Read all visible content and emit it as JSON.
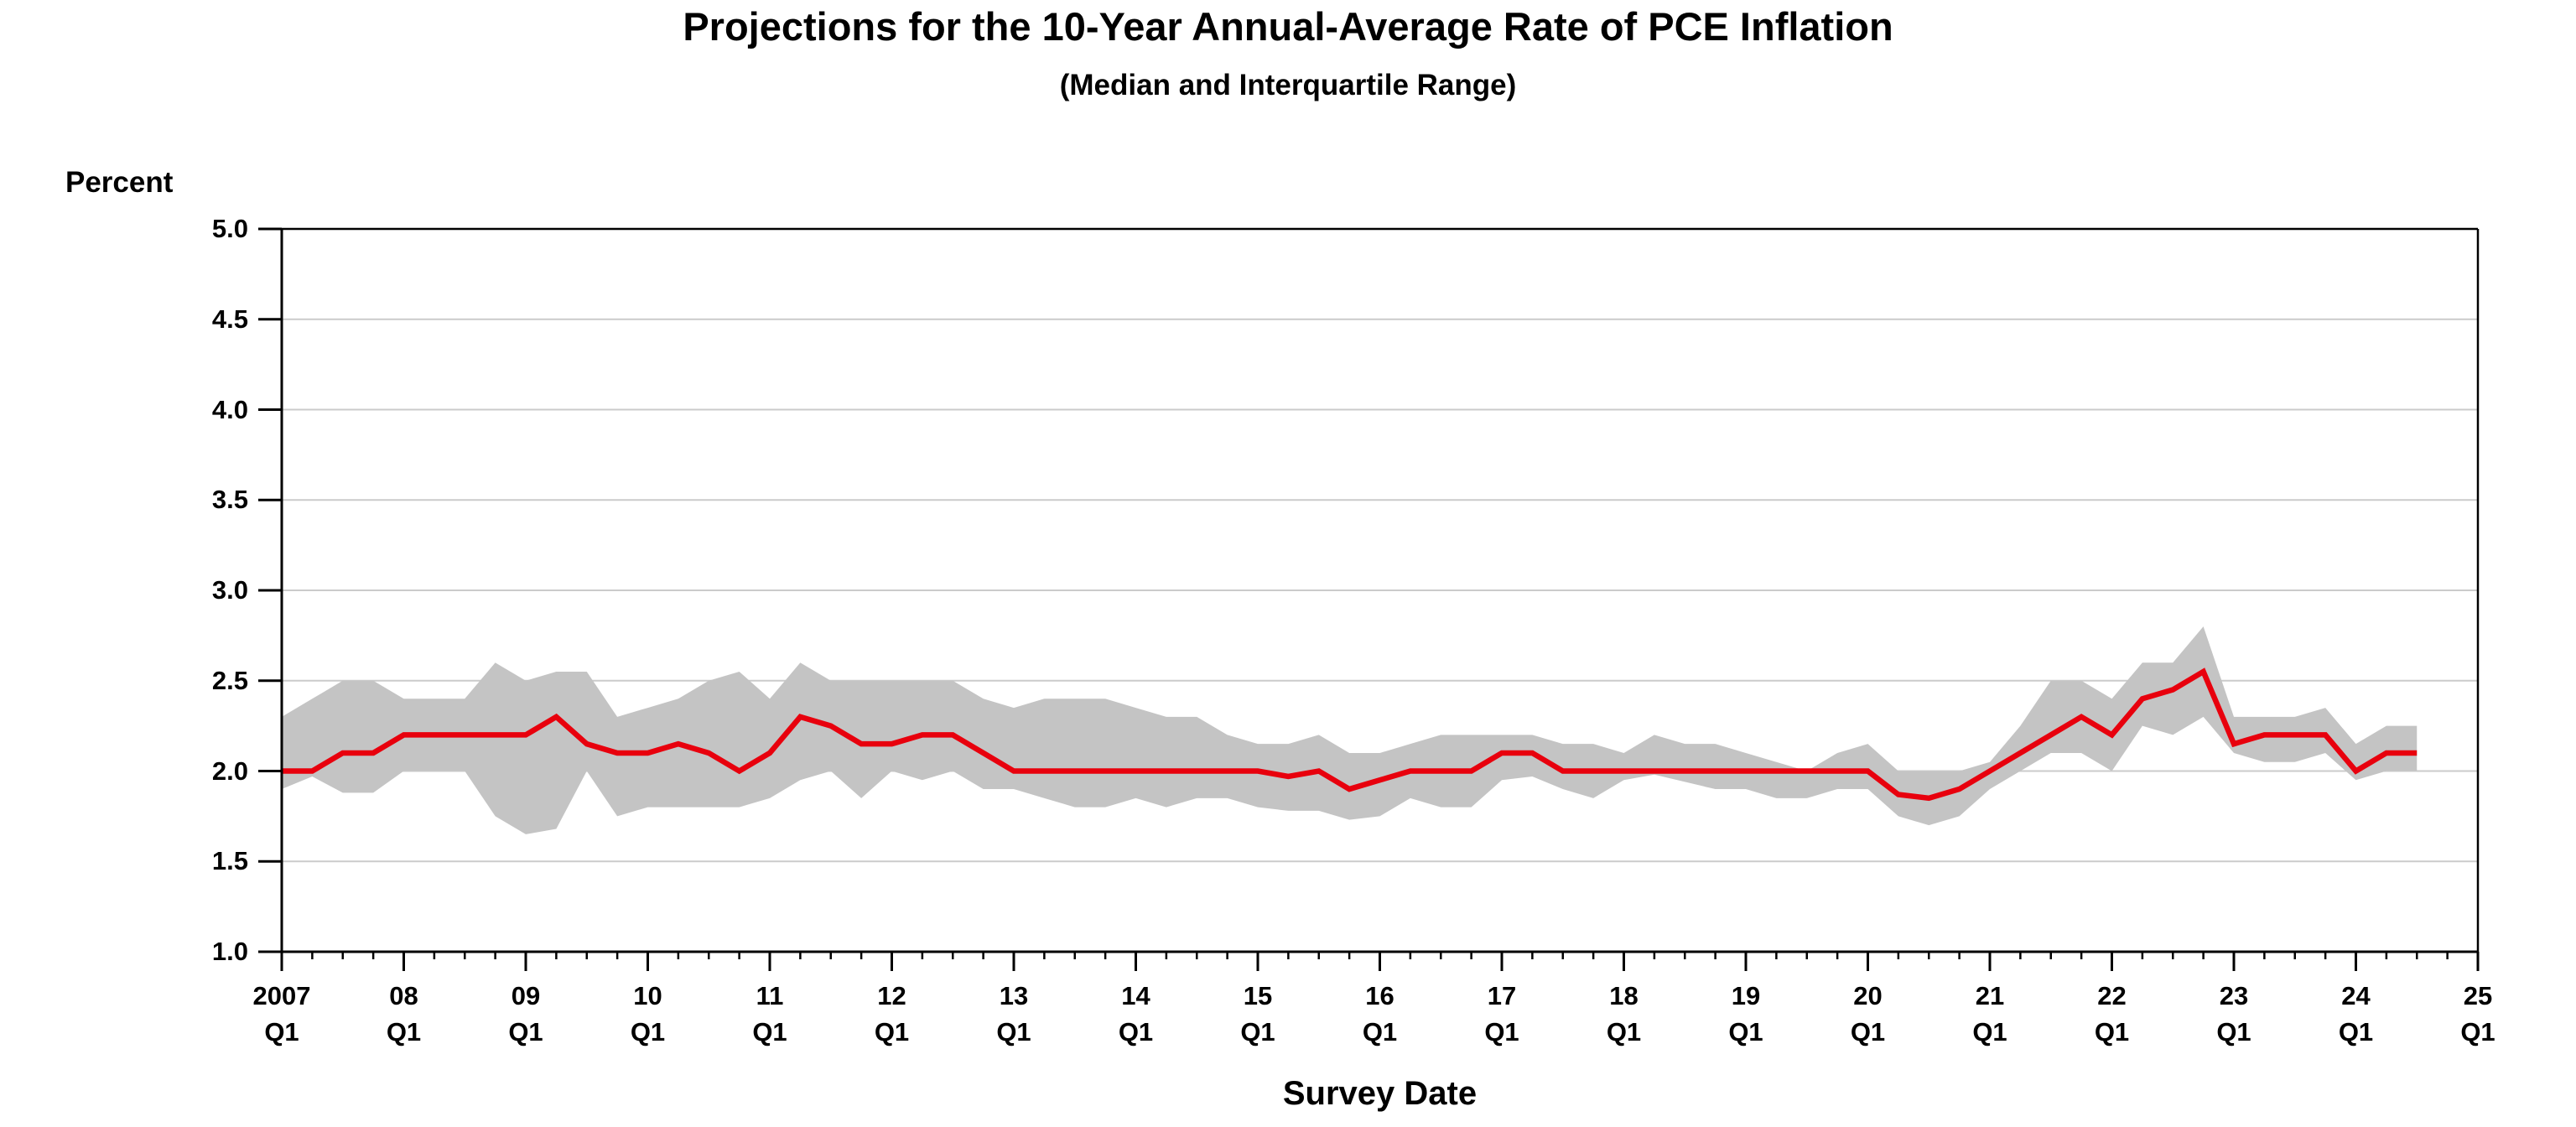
{
  "page": {
    "title": "Projections for the 10-Year Annual-Average Rate of PCE Inflation",
    "subtitle": "(Median and Interquartile Range)"
  },
  "colors": {
    "median_line": "#e8000d",
    "iqr_band": "#c4c4c4",
    "gridline": "#cbcbcb",
    "axis": "#000000",
    "text": "#000000",
    "background": "#ffffff"
  },
  "chart_data": {
    "type": "line",
    "title": "Projections for the 10-Year Annual-Average Rate of PCE Inflation",
    "subtitle": "(Median and Interquartile Range)",
    "xlabel": "Survey Date",
    "ylabel": "Percent",
    "ylim": [
      1.0,
      5.0
    ],
    "y_tick_step": 0.5,
    "y_ticks": [
      5.0,
      4.5,
      4.0,
      3.5,
      3.0,
      2.5,
      2.0,
      1.5,
      1.0
    ],
    "grid": true,
    "legend_position": "none",
    "x_major_ticks": [
      {
        "year": "2007",
        "quarter": "Q1"
      },
      {
        "year": "08",
        "quarter": "Q1"
      },
      {
        "year": "09",
        "quarter": "Q1"
      },
      {
        "year": "10",
        "quarter": "Q1"
      },
      {
        "year": "11",
        "quarter": "Q1"
      },
      {
        "year": "12",
        "quarter": "Q1"
      },
      {
        "year": "13",
        "quarter": "Q1"
      },
      {
        "year": "14",
        "quarter": "Q1"
      },
      {
        "year": "15",
        "quarter": "Q1"
      },
      {
        "year": "16",
        "quarter": "Q1"
      },
      {
        "year": "17",
        "quarter": "Q1"
      },
      {
        "year": "18",
        "quarter": "Q1"
      },
      {
        "year": "19",
        "quarter": "Q1"
      },
      {
        "year": "20",
        "quarter": "Q1"
      },
      {
        "year": "21",
        "quarter": "Q1"
      },
      {
        "year": "22",
        "quarter": "Q1"
      },
      {
        "year": "23",
        "quarter": "Q1"
      },
      {
        "year": "24",
        "quarter": "Q1"
      },
      {
        "year": "25",
        "quarter": "Q1"
      }
    ],
    "x": [
      "2007Q1",
      "2007Q2",
      "2007Q3",
      "2007Q4",
      "2008Q1",
      "2008Q2",
      "2008Q3",
      "2008Q4",
      "2009Q1",
      "2009Q2",
      "2009Q3",
      "2009Q4",
      "2010Q1",
      "2010Q2",
      "2010Q3",
      "2010Q4",
      "2011Q1",
      "2011Q2",
      "2011Q3",
      "2011Q4",
      "2012Q1",
      "2012Q2",
      "2012Q3",
      "2012Q4",
      "2013Q1",
      "2013Q2",
      "2013Q3",
      "2013Q4",
      "2014Q1",
      "2014Q2",
      "2014Q3",
      "2014Q4",
      "2015Q1",
      "2015Q2",
      "2015Q3",
      "2015Q4",
      "2016Q1",
      "2016Q2",
      "2016Q3",
      "2016Q4",
      "2017Q1",
      "2017Q2",
      "2017Q3",
      "2017Q4",
      "2018Q1",
      "2018Q2",
      "2018Q3",
      "2018Q4",
      "2019Q1",
      "2019Q2",
      "2019Q3",
      "2019Q4",
      "2020Q1",
      "2020Q2",
      "2020Q3",
      "2020Q4",
      "2021Q1",
      "2021Q2",
      "2021Q3",
      "2021Q4",
      "2022Q1",
      "2022Q2",
      "2022Q3",
      "2022Q4",
      "2023Q1",
      "2023Q2",
      "2023Q3",
      "2023Q4",
      "2024Q1",
      "2024Q2",
      "2024Q3"
    ],
    "series": [
      {
        "name": "Median",
        "role": "line",
        "color": "#e8000d",
        "values": [
          2.0,
          2.0,
          2.1,
          2.1,
          2.2,
          2.2,
          2.2,
          2.2,
          2.2,
          2.3,
          2.15,
          2.1,
          2.1,
          2.15,
          2.1,
          2.0,
          2.1,
          2.3,
          2.25,
          2.15,
          2.15,
          2.2,
          2.2,
          2.1,
          2.0,
          2.0,
          2.0,
          2.0,
          2.0,
          2.0,
          2.0,
          2.0,
          2.0,
          1.97,
          2.0,
          1.9,
          1.95,
          2.0,
          2.0,
          2.0,
          2.1,
          2.1,
          2.0,
          2.0,
          2.0,
          2.0,
          2.0,
          2.0,
          2.0,
          2.0,
          2.0,
          2.0,
          2.0,
          1.87,
          1.85,
          1.9,
          2.0,
          2.1,
          2.2,
          2.3,
          2.2,
          2.4,
          2.45,
          2.55,
          2.15,
          2.2,
          2.2,
          2.2,
          2.0,
          2.1,
          2.1
        ]
      },
      {
        "name": "25th percentile (interquartile lower)",
        "role": "band-lower",
        "color": "#c4c4c4",
        "values": [
          1.9,
          1.97,
          1.88,
          1.88,
          2.0,
          2.0,
          2.0,
          1.75,
          1.65,
          1.68,
          2.0,
          1.75,
          1.8,
          1.8,
          1.8,
          1.8,
          1.85,
          1.95,
          2.0,
          1.85,
          2.0,
          1.95,
          2.0,
          1.9,
          1.9,
          1.85,
          1.8,
          1.8,
          1.85,
          1.8,
          1.85,
          1.85,
          1.8,
          1.78,
          1.78,
          1.73,
          1.75,
          1.85,
          1.8,
          1.8,
          1.95,
          1.97,
          1.9,
          1.85,
          1.95,
          1.98,
          1.94,
          1.9,
          1.9,
          1.85,
          1.85,
          1.9,
          1.9,
          1.75,
          1.7,
          1.75,
          1.9,
          2.0,
          2.1,
          2.1,
          2.0,
          2.25,
          2.2,
          2.3,
          2.1,
          2.05,
          2.05,
          2.1,
          1.95,
          2.0,
          2.0
        ]
      },
      {
        "name": "75th percentile (interquartile upper)",
        "role": "band-upper",
        "color": "#c4c4c4",
        "values": [
          2.3,
          2.4,
          2.5,
          2.5,
          2.4,
          2.4,
          2.4,
          2.6,
          2.5,
          2.55,
          2.55,
          2.3,
          2.35,
          2.4,
          2.5,
          2.55,
          2.4,
          2.6,
          2.5,
          2.5,
          2.5,
          2.5,
          2.5,
          2.4,
          2.35,
          2.4,
          2.4,
          2.4,
          2.35,
          2.3,
          2.3,
          2.2,
          2.15,
          2.15,
          2.2,
          2.1,
          2.1,
          2.15,
          2.2,
          2.2,
          2.2,
          2.2,
          2.15,
          2.15,
          2.1,
          2.2,
          2.15,
          2.15,
          2.1,
          2.05,
          2.0,
          2.1,
          2.15,
          2.0,
          2.0,
          2.0,
          2.05,
          2.25,
          2.5,
          2.5,
          2.4,
          2.6,
          2.6,
          2.8,
          2.3,
          2.3,
          2.3,
          2.35,
          2.15,
          2.25,
          2.25
        ]
      }
    ]
  }
}
